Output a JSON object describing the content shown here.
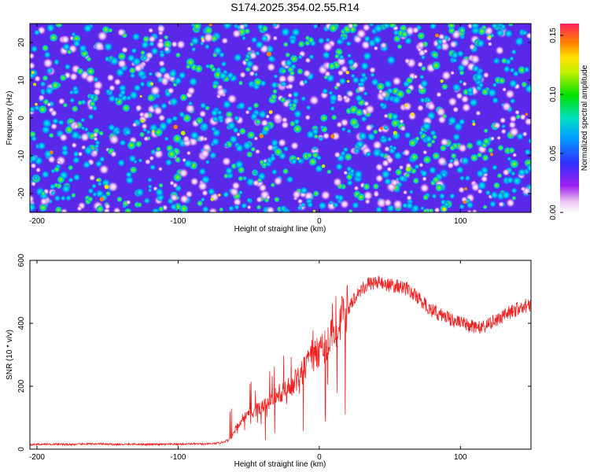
{
  "title": "S174.2025.354.02.55.R14",
  "colors": {
    "series": "#ee2222",
    "axis": "#000000"
  },
  "chart_data": [
    {
      "type": "heatmap",
      "xlabel": "Height of straight line (km)",
      "ylabel": "Frequency (Hz)",
      "xlim": [
        -205,
        150
      ],
      "ylim": [
        -25,
        25
      ],
      "xticks": [
        -200,
        -100,
        0,
        100
      ],
      "xtick_labels": [
        "-200",
        "-100",
        "0",
        "100"
      ],
      "yticks": [
        -20,
        -10,
        0,
        10,
        20
      ],
      "ytick_labels": [
        "-20",
        "-10",
        "0",
        "10",
        "20"
      ],
      "colorbar": {
        "label": "Normalized spectral amplitude",
        "range": [
          0,
          0.16
        ],
        "ticks": [
          0,
          0.05,
          0.1,
          0.15
        ],
        "tick_labels": [
          "0.00",
          "0.05",
          "0.10",
          "0.15"
        ]
      },
      "grid": false
    },
    {
      "type": "line",
      "xlabel": "Height of straight line (km)",
      "ylabel": "SNR (10 * v/v)",
      "xlim": [
        -205,
        150
      ],
      "ylim": [
        0,
        600
      ],
      "xticks": [
        -200,
        -100,
        0,
        100
      ],
      "xtick_labels": [
        "-200",
        "-100",
        "0",
        "100"
      ],
      "yticks": [
        0,
        200,
        400,
        600
      ],
      "ytick_labels": [
        "0",
        "200",
        "400",
        "600"
      ],
      "grid": false,
      "series": [
        {
          "name": "SNR",
          "x": [
            -205,
            -190,
            -175,
            -160,
            -145,
            -130,
            -115,
            -100,
            -90,
            -80,
            -75,
            -70,
            -65,
            -62,
            -58,
            -54,
            -50,
            -46,
            -42,
            -38,
            -34,
            -30,
            -26,
            -22,
            -18,
            -14,
            -10,
            -6,
            -2,
            2,
            6,
            10,
            14,
            18,
            22,
            26,
            30,
            35,
            40,
            45,
            50,
            55,
            60,
            65,
            70,
            75,
            80,
            85,
            90,
            95,
            100,
            105,
            110,
            115,
            120,
            125,
            130,
            135,
            140,
            145,
            150
          ],
          "values": [
            15,
            16,
            15,
            17,
            15,
            16,
            15,
            16,
            17,
            16,
            18,
            20,
            28,
            40,
            75,
            100,
            110,
            120,
            130,
            140,
            155,
            170,
            180,
            195,
            210,
            235,
            260,
            280,
            300,
            320,
            340,
            370,
            400,
            430,
            460,
            490,
            510,
            525,
            530,
            528,
            520,
            518,
            515,
            500,
            480,
            460,
            440,
            430,
            420,
            410,
            400,
            395,
            390,
            385,
            395,
            410,
            420,
            435,
            445,
            455,
            460
          ]
        }
      ]
    }
  ]
}
